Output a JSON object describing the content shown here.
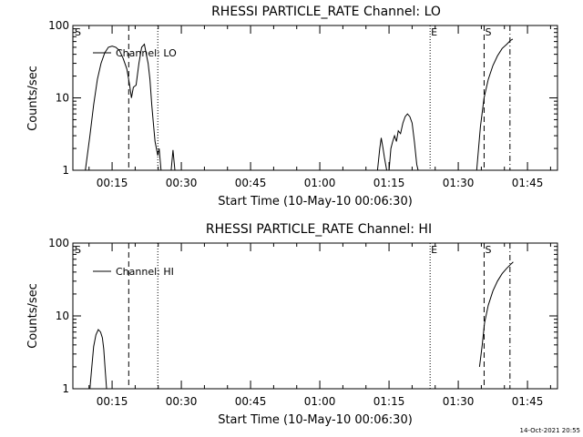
{
  "footer": {
    "timestamp": "14-Oct-2021 20:55"
  },
  "chart_data": [
    {
      "type": "line",
      "title": "RHESSI PARTICLE_RATE Channel: LO",
      "xlabel": "Start Time (10-May-10 00:06:30)",
      "ylabel": "Counts/sec",
      "y_scale": "log",
      "ylim": [
        1,
        100
      ],
      "xlim_minutes": [
        6.5,
        111.5
      ],
      "x_ticks": [
        {
          "t": 15,
          "label": "00:15"
        },
        {
          "t": 30,
          "label": "00:30"
        },
        {
          "t": 45,
          "label": "00:45"
        },
        {
          "t": 60,
          "label": "01:00"
        },
        {
          "t": 75,
          "label": "01:15"
        },
        {
          "t": 90,
          "label": "01:30"
        },
        {
          "t": 105,
          "label": "01:45"
        }
      ],
      "y_ticks": [
        {
          "v": 1,
          "label": "1"
        },
        {
          "v": 10,
          "label": "10"
        },
        {
          "v": 100,
          "label": "100"
        }
      ],
      "legend": {
        "label": "Channel: LO",
        "position": "top-left"
      },
      "markers": [
        {
          "t": 6.7,
          "label": "S",
          "style": "none"
        },
        {
          "t": 18.6,
          "label": "",
          "style": "dashed"
        },
        {
          "t": 24.9,
          "label": "",
          "style": "dotted"
        },
        {
          "t": 83.9,
          "label": "E",
          "style": "dotted"
        },
        {
          "t": 95.6,
          "label": "S",
          "style": "dashed"
        },
        {
          "t": 101.2,
          "label": "",
          "style": "dashdot"
        }
      ],
      "series": [
        {
          "segments": [
            [
              [
                9.2,
                1
              ],
              [
                10.2,
                3
              ],
              [
                11,
                8
              ],
              [
                11.8,
                18
              ],
              [
                12.6,
                30
              ],
              [
                13.4,
                42
              ],
              [
                14.2,
                50
              ],
              [
                15,
                52
              ],
              [
                15.8,
                50
              ],
              [
                16.6,
                45
              ],
              [
                17.4,
                35
              ],
              [
                18.2,
                25
              ],
              [
                18.8,
                15
              ],
              [
                19.2,
                10
              ],
              [
                19.6,
                14
              ],
              [
                20.2,
                15
              ],
              [
                20.8,
                30
              ],
              [
                21.4,
                50
              ],
              [
                22,
                55
              ],
              [
                22.4,
                40
              ],
              [
                22.8,
                30
              ],
              [
                23.2,
                18
              ],
              [
                23.6,
                8
              ],
              [
                24,
                4
              ],
              [
                24.3,
                2.5
              ],
              [
                24.6,
                2
              ],
              [
                24.9,
                1.6
              ],
              [
                25.2,
                2
              ],
              [
                25.6,
                1
              ]
            ],
            [
              [
                27.8,
                1
              ],
              [
                28.2,
                1.9
              ],
              [
                28.6,
                1
              ]
            ],
            [
              [
                72.5,
                1
              ],
              [
                73,
                2
              ],
              [
                73.3,
                2.8
              ],
              [
                73.7,
                2
              ],
              [
                74,
                1.5
              ],
              [
                74.5,
                1
              ],
              [
                75,
                1
              ],
              [
                75.4,
                2
              ],
              [
                75.8,
                2.5
              ],
              [
                76.2,
                3
              ],
              [
                76.6,
                2.5
              ],
              [
                77,
                3.5
              ],
              [
                77.5,
                3.2
              ],
              [
                78,
                4.5
              ],
              [
                78.5,
                5.5
              ],
              [
                79,
                6
              ],
              [
                79.5,
                5.5
              ],
              [
                80,
                4.5
              ],
              [
                80.5,
                2.5
              ],
              [
                81,
                1.2
              ],
              [
                81.3,
                1
              ]
            ],
            [
              [
                94,
                1
              ],
              [
                94.8,
                4
              ],
              [
                95.6,
                10
              ],
              [
                96.5,
                18
              ],
              [
                97.5,
                28
              ],
              [
                98.5,
                38
              ],
              [
                99.5,
                48
              ],
              [
                100.5,
                55
              ],
              [
                101.3,
                62
              ],
              [
                101.8,
                65
              ]
            ]
          ]
        }
      ]
    },
    {
      "type": "line",
      "title": "RHESSI PARTICLE_RATE Channel: HI",
      "xlabel": "Start Time (10-May-10 00:06:30)",
      "ylabel": "Counts/sec",
      "y_scale": "log",
      "ylim": [
        1,
        100
      ],
      "xlim_minutes": [
        6.5,
        111.5
      ],
      "x_ticks": [
        {
          "t": 15,
          "label": "00:15"
        },
        {
          "t": 30,
          "label": "00:30"
        },
        {
          "t": 45,
          "label": "00:45"
        },
        {
          "t": 60,
          "label": "01:00"
        },
        {
          "t": 75,
          "label": "01:15"
        },
        {
          "t": 90,
          "label": "01:30"
        },
        {
          "t": 105,
          "label": "01:45"
        }
      ],
      "y_ticks": [
        {
          "v": 1,
          "label": "1"
        },
        {
          "v": 10,
          "label": "10"
        },
        {
          "v": 100,
          "label": "100"
        }
      ],
      "legend": {
        "label": "Channel: HI",
        "position": "top-left"
      },
      "markers": [
        {
          "t": 6.7,
          "label": "S",
          "style": "none"
        },
        {
          "t": 18.6,
          "label": "",
          "style": "dashed"
        },
        {
          "t": 24.9,
          "label": "",
          "style": "dotted"
        },
        {
          "t": 83.9,
          "label": "E",
          "style": "dotted"
        },
        {
          "t": 95.6,
          "label": "S",
          "style": "dashed"
        },
        {
          "t": 101.2,
          "label": "",
          "style": "dashdot"
        }
      ],
      "series": [
        {
          "segments": [
            [
              [
                10.2,
                1
              ],
              [
                10.6,
                2
              ],
              [
                11,
                3.8
              ],
              [
                11.5,
                5.5
              ],
              [
                12,
                6.5
              ],
              [
                12.5,
                6
              ],
              [
                12.9,
                5
              ],
              [
                13.2,
                3.5
              ],
              [
                13.5,
                1.8
              ],
              [
                13.8,
                1
              ]
            ],
            [
              [
                94.6,
                2
              ],
              [
                95.2,
                4
              ],
              [
                95.7,
                8
              ],
              [
                96.5,
                14
              ],
              [
                97.5,
                22
              ],
              [
                98.5,
                30
              ],
              [
                99.5,
                38
              ],
              [
                100.5,
                45
              ],
              [
                101.5,
                52
              ],
              [
                101.9,
                55
              ]
            ]
          ]
        }
      ]
    }
  ]
}
